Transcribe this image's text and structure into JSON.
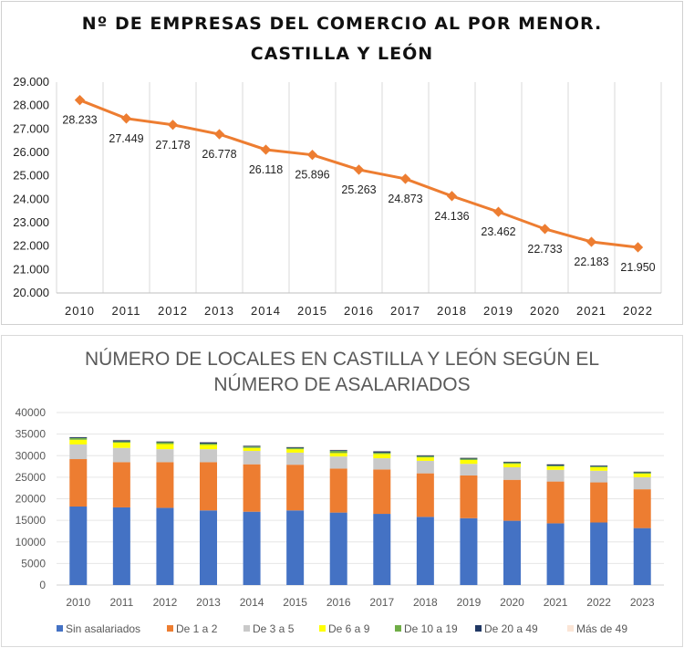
{
  "chart_data": [
    {
      "type": "line",
      "title": "Nº DE EMPRESAS DEL COMERCIO AL POR MENOR. CASTILLA Y LEÓN",
      "title_lines": [
        "Nº DE EMPRESAS DEL COMERCIO AL POR MENOR.",
        "CASTILLA Y LEÓN"
      ],
      "categories": [
        "2010",
        "2011",
        "2012",
        "2013",
        "2014",
        "2015",
        "2016",
        "2017",
        "2018",
        "2019",
        "2020",
        "2021",
        "2022"
      ],
      "values": [
        28233,
        27449,
        27178,
        26778,
        26118,
        25896,
        25263,
        24873,
        24136,
        23462,
        22733,
        22183,
        21950
      ],
      "data_labels": [
        "28.233",
        "27.449",
        "27.178",
        "26.778",
        "26.118",
        "25.896",
        "25.263",
        "24.873",
        "24.136",
        "23.462",
        "22.733",
        "22.183",
        "21.950"
      ],
      "ylim": [
        20000,
        29000
      ],
      "y_ticks": [
        "20.000",
        "21.000",
        "22.000",
        "23.000",
        "24.000",
        "25.000",
        "26.000",
        "27.000",
        "28.000",
        "29.000"
      ],
      "grid": "vertical",
      "color": "#ED7D31",
      "xlabel": "",
      "ylabel": ""
    },
    {
      "type": "bar",
      "stacked": true,
      "title": "NÚMERO DE LOCALES EN CASTILLA Y LEÓN SEGÚN EL NÚMERO DE ASALARIADOS",
      "title_lines": [
        "NÚMERO DE LOCALES EN CASTILLA Y LEÓN SEGÚN EL",
        "NÚMERO DE ASALARIADOS"
      ],
      "categories": [
        "2010",
        "2011",
        "2012",
        "2013",
        "2014",
        "2015",
        "2016",
        "2017",
        "2018",
        "2019",
        "2020",
        "2021",
        "2022",
        "2023"
      ],
      "ylim": [
        0,
        40000
      ],
      "y_ticks": [
        "0",
        "5000",
        "10000",
        "15000",
        "20000",
        "25000",
        "30000",
        "35000",
        "40000"
      ],
      "grid": "horizontal",
      "legend": "bottom",
      "series": [
        {
          "name": "Sin asalariados",
          "color": "#4472C4",
          "values": [
            18200,
            18000,
            17900,
            17300,
            17000,
            17300,
            16800,
            16500,
            15800,
            15500,
            14900,
            14300,
            14500,
            13200
          ]
        },
        {
          "name": "De 1 a 2",
          "color": "#ED7D31",
          "values": [
            11000,
            10500,
            10600,
            11200,
            11000,
            10600,
            10200,
            10300,
            10100,
            9900,
            9500,
            9700,
            9300,
            9000
          ]
        },
        {
          "name": "De 3 a 5",
          "color": "#C9C9C9",
          "values": [
            3400,
            3300,
            3000,
            3000,
            3100,
            2800,
            2800,
            2600,
            2900,
            2700,
            2900,
            2700,
            2700,
            2800
          ]
        },
        {
          "name": "De 6 a 9",
          "color": "#FFFF00",
          "values": [
            1100,
            1200,
            1200,
            1000,
            700,
            800,
            800,
            1000,
            800,
            900,
            800,
            800,
            800,
            800
          ]
        },
        {
          "name": "De 10 a 19",
          "color": "#70AD47",
          "values": [
            400,
            300,
            400,
            300,
            300,
            300,
            500,
            300,
            300,
            300,
            300,
            200,
            200,
            300
          ]
        },
        {
          "name": "De 20 a 49",
          "color": "#203864",
          "values": [
            200,
            300,
            200,
            300,
            200,
            200,
            200,
            300,
            200,
            200,
            200,
            300,
            200,
            200
          ]
        },
        {
          "name": "Más de 49",
          "color": "#FBE5D6",
          "values": [
            100,
            100,
            100,
            100,
            100,
            100,
            100,
            100,
            100,
            100,
            100,
            100,
            100,
            100
          ]
        }
      ],
      "xlabel": "",
      "ylabel": ""
    }
  ]
}
